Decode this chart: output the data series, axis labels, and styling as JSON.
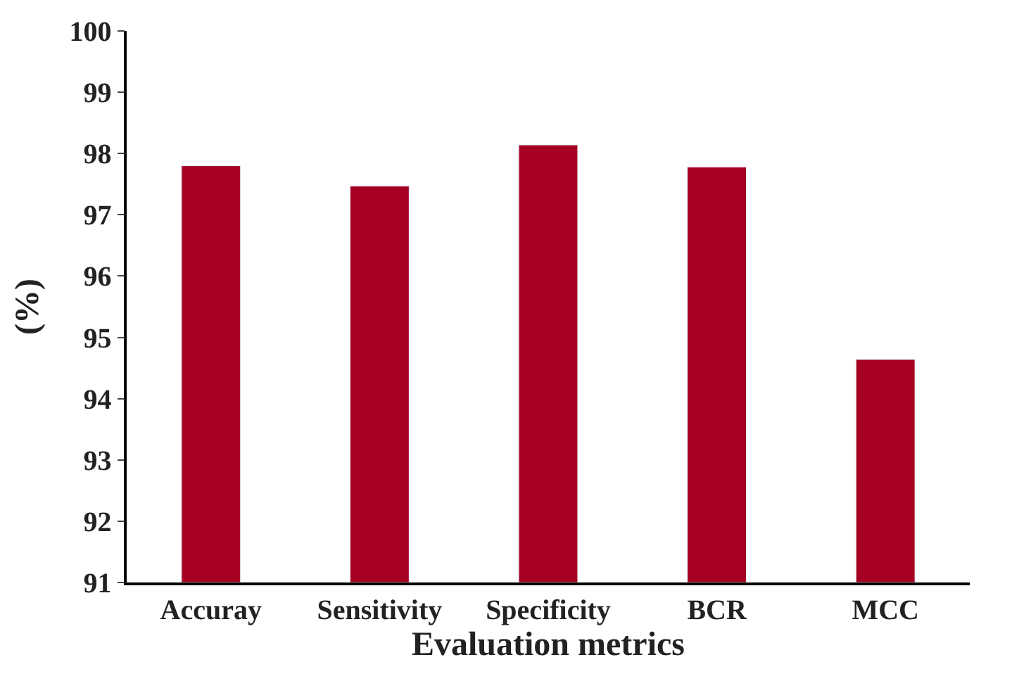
{
  "chart_data": {
    "type": "bar",
    "xlabel": "Evaluation metrics",
    "ylabel": "(%)",
    "categories": [
      "Accuray",
      "Sensitivity",
      "Specificity",
      "BCR",
      "MCC"
    ],
    "values": [
      97.8,
      97.47,
      98.14,
      97.78,
      94.64
    ],
    "color": "#a50021",
    "ylim": [
      91,
      100
    ],
    "yticks": [
      91,
      92,
      93,
      94,
      95,
      96,
      97,
      98,
      99,
      100
    ]
  }
}
